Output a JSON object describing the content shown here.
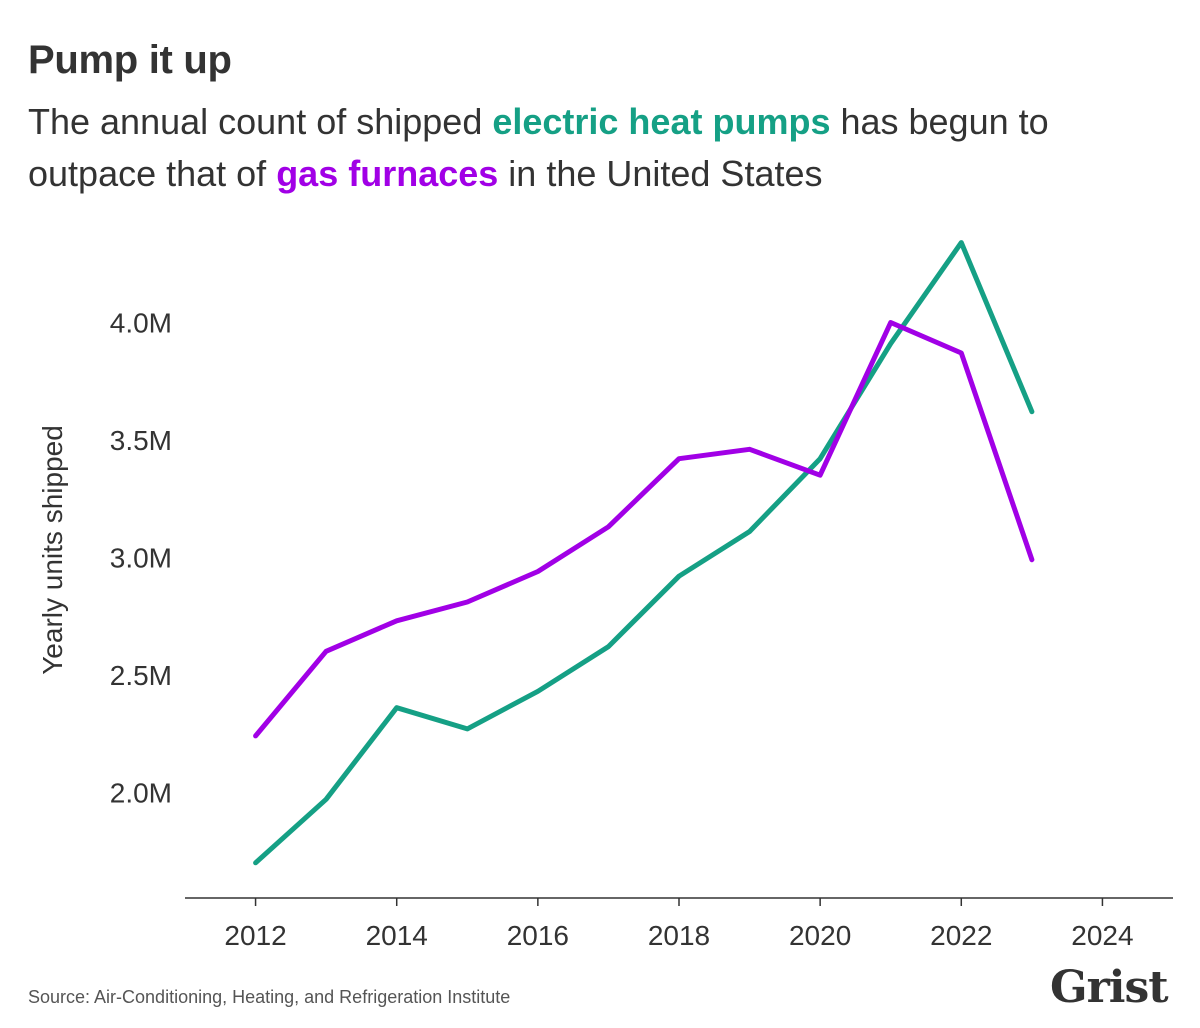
{
  "title": "Pump it up",
  "subtitle": {
    "part1": "The annual count of shipped ",
    "hl1": "electric heat pumps",
    "part2": " has begun to outpace that of ",
    "hl2": "gas furnaces",
    "part3": " in the United States"
  },
  "source": "Source: Air-Conditioning, Heating, and Refrigeration Institute",
  "logo": "Grist",
  "colors": {
    "heat_pumps": "#15a085",
    "gas_furnaces": "#a100e6",
    "axis": "#333333"
  },
  "chart_data": {
    "type": "line",
    "title": "",
    "xlabel": "",
    "ylabel": "Yearly units shipped",
    "x": [
      2012,
      2013,
      2014,
      2015,
      2016,
      2017,
      2018,
      2019,
      2020,
      2021,
      2022,
      2023
    ],
    "xlim": [
      2011,
      2025
    ],
    "ylim": [
      1.55,
      4.5
    ],
    "x_ticks": [
      2012,
      2014,
      2016,
      2018,
      2020,
      2022,
      2024
    ],
    "x_tick_labels": [
      "2012",
      "2014",
      "2016",
      "2018",
      "2020",
      "2022",
      "2024"
    ],
    "y_ticks": [
      2.0,
      2.5,
      3.0,
      3.5,
      4.0
    ],
    "y_tick_labels": [
      "2.0M",
      "2.5M",
      "3.0M",
      "3.5M",
      "4.0M"
    ],
    "grid": false,
    "legend": "none",
    "series": [
      {
        "key": "heat_pumps",
        "values": [
          1.7,
          1.97,
          2.36,
          2.27,
          2.43,
          2.62,
          2.92,
          3.11,
          3.42,
          3.91,
          4.34,
          3.62
        ]
      },
      {
        "key": "gas_furnaces",
        "values": [
          2.24,
          2.6,
          2.73,
          2.81,
          2.94,
          3.13,
          3.42,
          3.46,
          3.35,
          4.0,
          3.87,
          2.99
        ]
      }
    ]
  }
}
